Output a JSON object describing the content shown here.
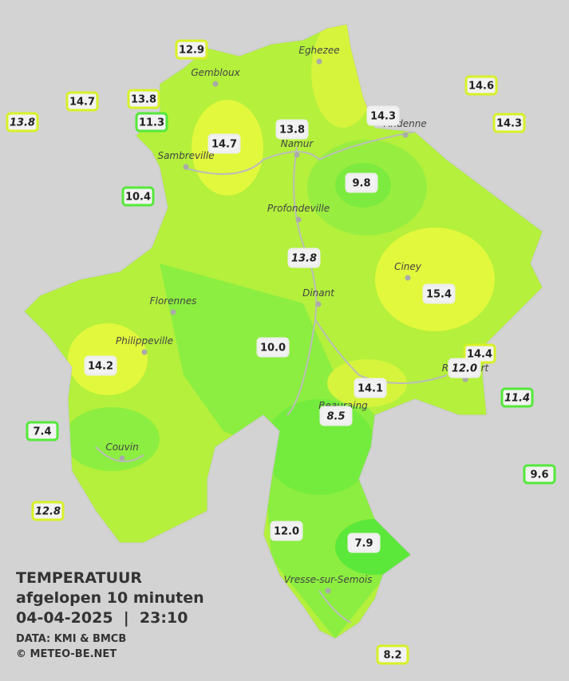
{
  "header": {
    "title": "TEMPERATUUR",
    "subtitle": "afgelopen 10 minuten",
    "datetime": "04-04-2025  |  23:10",
    "source": "DATA: KMI & BMCB",
    "credit": "© METEO-BE.NET"
  },
  "cities": [
    "Eghezee",
    "Gembloux",
    "Andenne",
    "Namur",
    "Sambreville",
    "Profondeville",
    "Ciney",
    "Dinant",
    "Florennes",
    "Philippeville",
    "Rochefort",
    "Beauraing",
    "Couvin",
    "Vresse-sur-Semois"
  ],
  "stations": [
    "12.9",
    "14.7",
    "13.8",
    "13.8",
    "11.3",
    "14.7",
    "13.8",
    "14.3",
    "14.6",
    "14.3",
    "10.4",
    "9.8",
    "13.8",
    "15.4",
    "10.0",
    "14.2",
    "14.4",
    "12.0",
    "14.1",
    "11.4",
    "7.4",
    "8.5",
    "9.6",
    "12.8",
    "12.0",
    "7.9",
    "8.2"
  ]
}
